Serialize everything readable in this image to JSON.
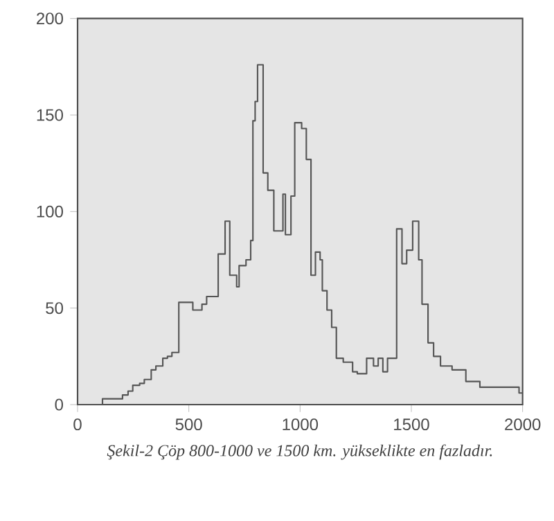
{
  "chart_data": {
    "type": "step",
    "color": "#555555",
    "x": [
      0,
      112,
      202,
      227,
      248,
      279,
      300,
      331,
      352,
      383,
      404,
      424,
      455,
      518,
      559,
      580,
      632,
      663,
      684,
      715,
      726,
      757,
      778,
      788,
      798,
      809,
      834,
      855,
      882,
      923,
      934,
      959,
      976,
      1007,
      1028,
      1049,
      1069,
      1090,
      1100,
      1121,
      1142,
      1163,
      1194,
      1236,
      1257,
      1299,
      1330,
      1351,
      1372,
      1393,
      1434,
      1458,
      1479,
      1506,
      1533,
      1548,
      1575,
      1600,
      1631,
      1683,
      1745,
      1808,
      1870,
      1984,
      2000
    ],
    "values": [
      0,
      3,
      5,
      7,
      10,
      11,
      13,
      18,
      20,
      24,
      25,
      27,
      53,
      49,
      52,
      56,
      78,
      95,
      67,
      61,
      72,
      75,
      85,
      147,
      157,
      176,
      120,
      111,
      90,
      109,
      88,
      108,
      146,
      143,
      127,
      67,
      79,
      75,
      59,
      49,
      40,
      24,
      22,
      17,
      16,
      24,
      20,
      24,
      17,
      24,
      91,
      73,
      80,
      95,
      75,
      52,
      32,
      25,
      20,
      18,
      12,
      9,
      9,
      6,
      6
    ],
    "xlim": [
      0,
      2000
    ],
    "ylim": [
      0,
      200
    ],
    "xticks": [
      0,
      500,
      1000,
      1500,
      2000
    ],
    "yticks": [
      0,
      50,
      100,
      150,
      200
    ],
    "annotations": [
      "Şekil-2 Çöp 800-1000 ve 1500 km. yükseklikte en fazladır."
    ]
  }
}
